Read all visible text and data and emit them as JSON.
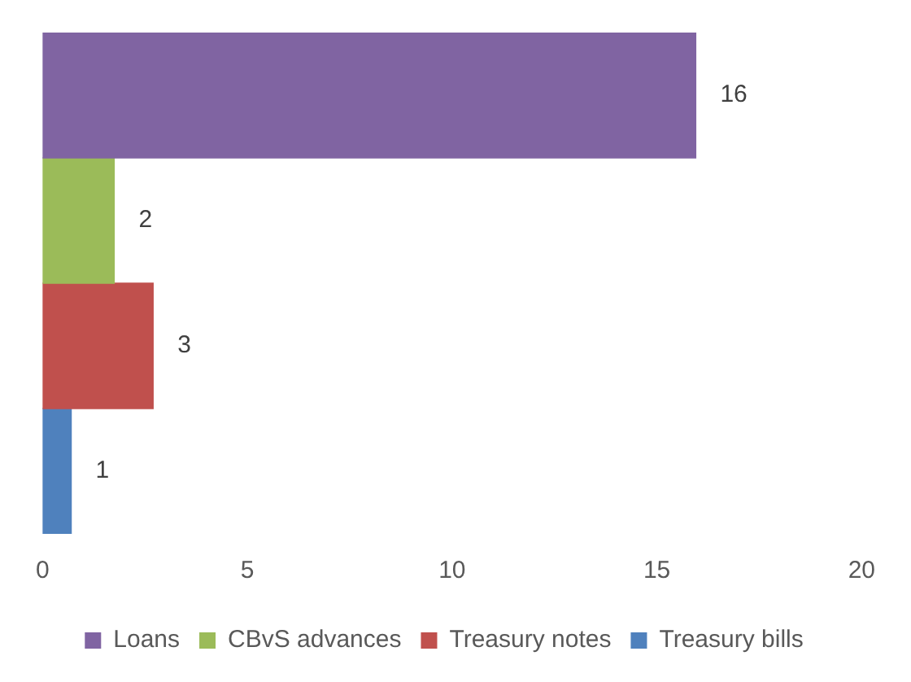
{
  "chart_data": {
    "type": "bar",
    "orientation": "horizontal",
    "categories": [
      null
    ],
    "series": [
      {
        "name": "Loans",
        "color": "#8064a2",
        "values": [
          15.95
        ],
        "value_labels": [
          "16"
        ]
      },
      {
        "name": "CBvS advances",
        "color": "#9bbb59",
        "values": [
          1.75
        ],
        "value_labels": [
          "2"
        ]
      },
      {
        "name": "Treasury notes",
        "color": "#c0504d",
        "values": [
          2.7
        ],
        "value_labels": [
          "3"
        ]
      },
      {
        "name": "Treasury bills",
        "color": "#4f81bd",
        "values": [
          0.7
        ],
        "value_labels": [
          "1"
        ]
      }
    ],
    "xlim": [
      0,
      20
    ],
    "xticks": [
      0,
      5,
      10,
      15,
      20
    ],
    "grid": false,
    "legend": "bottom"
  }
}
